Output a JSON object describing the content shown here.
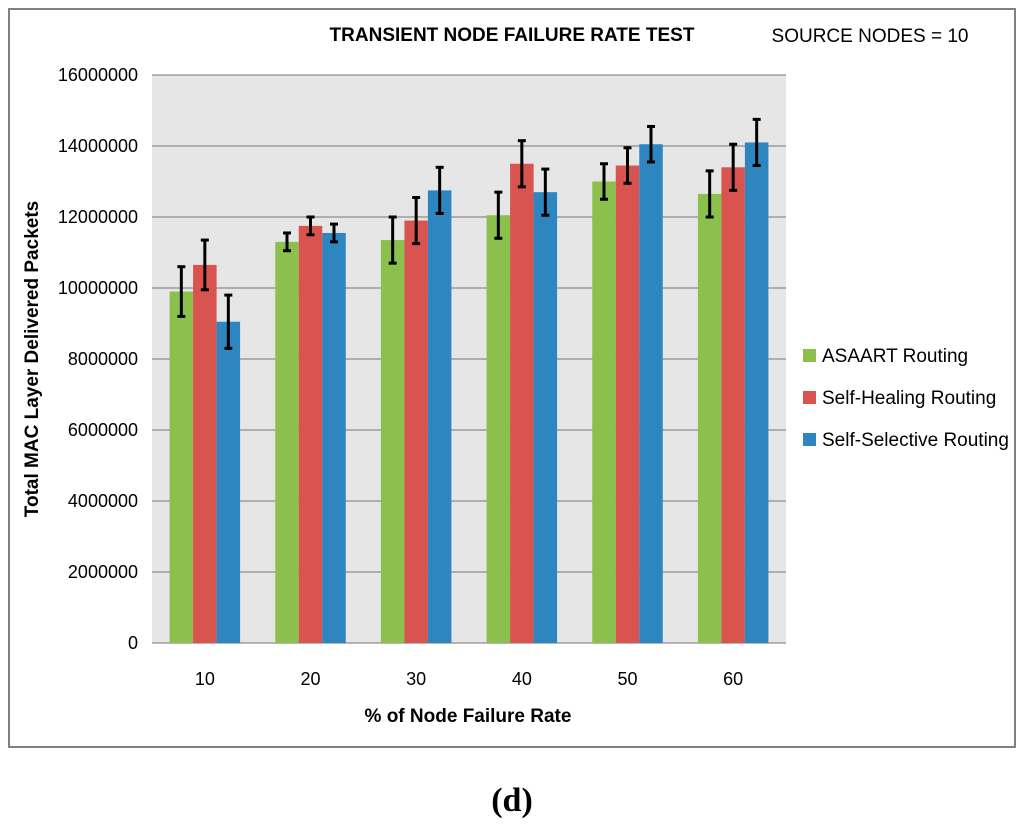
{
  "panel_label": "(d)",
  "chart_data": {
    "type": "bar",
    "title": "TRANSIENT NODE FAILURE RATE TEST",
    "annotation": "SOURCE NODES = 10",
    "xlabel": "% of Node Failure Rate",
    "ylabel": "Total MAC Layer Delivered Packets",
    "categories": [
      "10",
      "20",
      "30",
      "40",
      "50",
      "60"
    ],
    "ylim": [
      0,
      16000000
    ],
    "yticks": [
      0,
      2000000,
      4000000,
      6000000,
      8000000,
      10000000,
      12000000,
      14000000,
      16000000
    ],
    "ytick_labels": [
      "0",
      "2000000",
      "4000000",
      "6000000",
      "8000000",
      "10000000",
      "12000000",
      "14000000",
      "16000000"
    ],
    "grid": true,
    "legend_position": "right",
    "series": [
      {
        "name": "ASAART Routing",
        "color": "#8cc04d",
        "values": [
          9900000,
          11300000,
          11350000,
          12050000,
          13000000,
          12650000
        ],
        "error": [
          700000,
          250000,
          650000,
          650000,
          500000,
          650000
        ]
      },
      {
        "name": "Self-Healing Routing",
        "color": "#d9534f",
        "values": [
          10650000,
          11750000,
          11900000,
          13500000,
          13450000,
          13400000
        ],
        "error": [
          700000,
          250000,
          650000,
          650000,
          500000,
          650000
        ]
      },
      {
        "name": "Self-Selective Routing",
        "color": "#2e86c1",
        "values": [
          9050000,
          11550000,
          12750000,
          12700000,
          14050000,
          14100000
        ],
        "error": [
          750000,
          250000,
          650000,
          650000,
          500000,
          650000
        ]
      }
    ]
  }
}
